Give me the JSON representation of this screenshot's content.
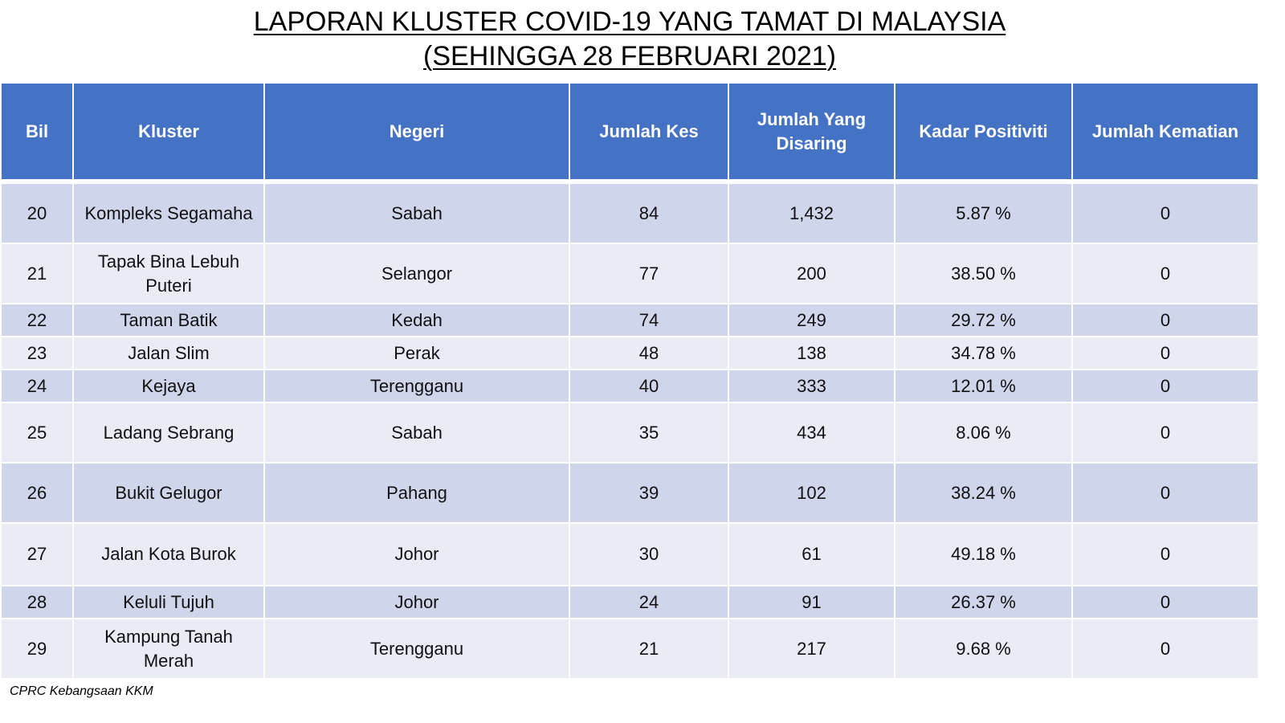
{
  "title": {
    "line1": "LAPORAN KLUSTER COVID-19 YANG TAMAT DI MALAYSIA",
    "line2": "(SEHINGGA  28 FEBRUARI 2021)"
  },
  "table": {
    "headers": {
      "bil": "Bil",
      "kluster": "Kluster",
      "negeri": "Negeri",
      "jumlah_kes": "Jumlah Kes",
      "jumlah_disaring_line1": "Jumlah Yang",
      "jumlah_disaring_line2": "Disaring",
      "kadar_positiviti": "Kadar Positiviti",
      "jumlah_kematian": "Jumlah Kematian"
    },
    "rows": [
      {
        "bil": "20",
        "kluster_line1": "Kompleks Segamaha",
        "kluster_line2": "",
        "negeri": "Sabah",
        "kes": "84",
        "disaring": "1,432",
        "positiviti": "5.87 %",
        "kematian": "0"
      },
      {
        "bil": "21",
        "kluster_line1": "Tapak Bina Lebuh",
        "kluster_line2": "Puteri",
        "negeri": "Selangor",
        "kes": "77",
        "disaring": "200",
        "positiviti": "38.50 %",
        "kematian": "0"
      },
      {
        "bil": "22",
        "kluster_line1": "Taman Batik",
        "kluster_line2": "",
        "negeri": "Kedah",
        "kes": "74",
        "disaring": "249",
        "positiviti": "29.72 %",
        "kematian": "0"
      },
      {
        "bil": "23",
        "kluster_line1": "Jalan Slim",
        "kluster_line2": "",
        "negeri": "Perak",
        "kes": "48",
        "disaring": "138",
        "positiviti": "34.78 %",
        "kematian": "0"
      },
      {
        "bil": "24",
        "kluster_line1": "Kejaya",
        "kluster_line2": "",
        "negeri": "Terengganu",
        "kes": "40",
        "disaring": "333",
        "positiviti": "12.01 %",
        "kematian": "0"
      },
      {
        "bil": "25",
        "kluster_line1": "Ladang Sebrang",
        "kluster_line2": "",
        "negeri": "Sabah",
        "kes": "35",
        "disaring": "434",
        "positiviti": "8.06 %",
        "kematian": "0"
      },
      {
        "bil": "26",
        "kluster_line1": "Bukit Gelugor",
        "kluster_line2": "",
        "negeri": "Pahang",
        "kes": "39",
        "disaring": "102",
        "positiviti": "38.24 %",
        "kematian": "0"
      },
      {
        "bil": "27",
        "kluster_line1": "Jalan Kota Burok",
        "kluster_line2": "",
        "negeri": "Johor",
        "kes": "30",
        "disaring": "61",
        "positiviti": "49.18 %",
        "kematian": "0"
      },
      {
        "bil": "28",
        "kluster_line1": "Keluli Tujuh",
        "kluster_line2": "",
        "negeri": "Johor",
        "kes": "24",
        "disaring": "91",
        "positiviti": "26.37 %",
        "kematian": "0"
      },
      {
        "bil": "29",
        "kluster_line1": "Kampung Tanah",
        "kluster_line2": "Merah",
        "negeri": "Terengganu",
        "kes": "21",
        "disaring": "217",
        "positiviti": "9.68 %",
        "kematian": "0"
      }
    ]
  },
  "source": "CPRC Kebangsaan KKM"
}
